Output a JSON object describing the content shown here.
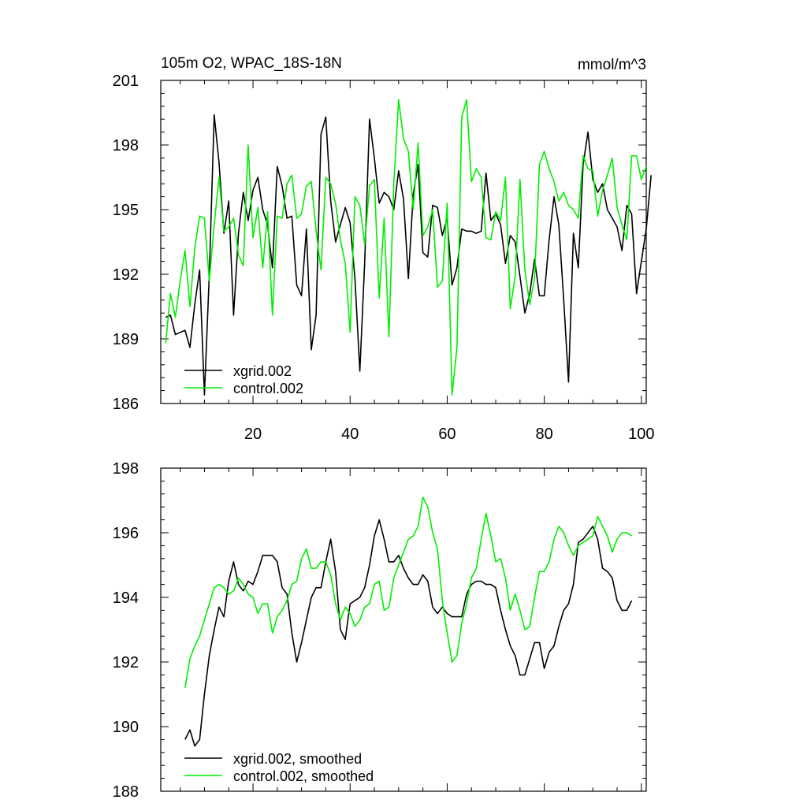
{
  "chart_data": [
    {
      "type": "line",
      "title": "105m O2, WPAC_18S-18N",
      "units": "mmol/m^3",
      "xlim": [
        1,
        101
      ],
      "ylim": [
        186,
        201
      ],
      "xticks": [
        20,
        40,
        60,
        80,
        100
      ],
      "yticks": [
        186,
        189,
        192,
        195,
        198,
        201
      ],
      "legend_position": "bottom-left",
      "series": [
        {
          "name": "xgrid.002",
          "color": "#000000",
          "x_start": 2,
          "values": [
            190.0,
            190.1,
            189.2,
            189.3,
            189.4,
            188.6,
            190.6,
            192.2,
            186.4,
            192.0,
            199.4,
            197.2,
            193.9,
            195.4,
            190.1,
            193.9,
            195.8,
            194.5,
            195.9,
            196.5,
            195.0,
            194.3,
            192.3,
            197.0,
            196.1,
            194.6,
            194.7,
            191.5,
            191.0,
            194.1,
            188.5,
            190.1,
            198.5,
            199.3,
            195.4,
            193.5,
            194.3,
            195.1,
            194.4,
            191.8,
            187.5,
            192.5,
            199.2,
            197.4,
            195.3,
            195.8,
            195.6,
            195.0,
            196.8,
            195.5,
            191.8,
            195.7,
            197.1,
            193.0,
            192.8,
            195.2,
            195.1,
            193.8,
            194.6,
            191.5,
            192.3,
            194.1,
            194.0,
            194.0,
            193.9,
            194.0,
            196.7,
            194.5,
            194.8,
            194.3,
            192.5,
            193.8,
            193.5,
            191.9,
            190.2,
            191.1,
            192.7,
            191.0,
            191.0,
            193.6,
            195.6,
            194.3,
            190.8,
            187.0,
            193.9,
            192.3,
            197.1,
            198.6,
            196.4,
            195.8,
            196.2,
            195.0,
            194.6,
            194.2,
            193.1,
            195.2,
            194.8,
            191.1,
            192.6,
            194.1,
            196.6
          ]
        },
        {
          "name": "control.002",
          "color": "#00ee00",
          "x_start": 2,
          "values": [
            188.8,
            191.1,
            190.0,
            191.7,
            193.1,
            190.5,
            193.2,
            194.7,
            194.6,
            191.7,
            194.3,
            196.5,
            194.0,
            194.2,
            194.6,
            192.9,
            192.4,
            198.0,
            193.7,
            195.1,
            192.3,
            194.9,
            190.1,
            194.7,
            194.6,
            196.2,
            196.6,
            194.6,
            194.8,
            196.1,
            196.3,
            194.0,
            192.2,
            196.5,
            196.2,
            195.3,
            193.6,
            192.5,
            189.3,
            195.6,
            195.2,
            193.4,
            196.1,
            196.4,
            190.9,
            194.6,
            189.1,
            196.2,
            200.1,
            198.3,
            197.7,
            195.0,
            198.1,
            193.8,
            194.2,
            195.0,
            191.4,
            191.7,
            195.3,
            186.4,
            188.6,
            199.3,
            200.1,
            196.3,
            196.9,
            196.5,
            193.7,
            193.6,
            194.9,
            194.5,
            196.5,
            190.4,
            191.9,
            196.4,
            192.2,
            190.6,
            191.8,
            197.1,
            197.7,
            196.9,
            196.3,
            195.4,
            195.8,
            195.2,
            195.0,
            194.6,
            197.5,
            196.9,
            196.8,
            194.7,
            195.9,
            196.6,
            197.4,
            195.1,
            194.3,
            193.6,
            197.5,
            197.5,
            196.4,
            197.0
          ]
        }
      ]
    },
    {
      "type": "line",
      "title": "",
      "xlim": [
        1,
        101
      ],
      "ylim": [
        188,
        198
      ],
      "yticks": [
        188,
        190,
        192,
        194,
        196,
        198
      ],
      "legend_position": "bottom-left",
      "series": [
        {
          "name": "xgrid.002, smoothed",
          "color": "#000000",
          "x_start": 6,
          "values": [
            189.6,
            189.9,
            189.4,
            189.6,
            191.0,
            192.2,
            193.0,
            193.7,
            193.4,
            194.5,
            195.1,
            194.4,
            194.2,
            194.5,
            194.4,
            194.8,
            195.3,
            195.3,
            195.3,
            195.1,
            194.3,
            194.1,
            192.9,
            192.0,
            192.6,
            193.3,
            194.0,
            194.3,
            194.3,
            195.1,
            195.8,
            194.8,
            193.0,
            192.7,
            193.8,
            193.9,
            194.0,
            194.3,
            195.0,
            195.9,
            196.4,
            195.8,
            195.1,
            195.1,
            195.3,
            194.9,
            194.6,
            194.4,
            194.4,
            194.7,
            194.5,
            193.7,
            193.5,
            193.7,
            193.5,
            193.4,
            193.4,
            193.4,
            194.1,
            194.4,
            194.5,
            194.5,
            194.4,
            194.4,
            194.3,
            193.6,
            193.0,
            192.5,
            192.2,
            191.6,
            191.6,
            192.1,
            192.6,
            192.6,
            191.8,
            192.3,
            192.5,
            193.1,
            193.6,
            193.8,
            194.4,
            195.7,
            195.8,
            196.0,
            196.2,
            195.8,
            194.9,
            194.8,
            194.6,
            193.9,
            193.6,
            193.6,
            193.9
          ]
        },
        {
          "name": "control.002, smoothed",
          "color": "#00ee00",
          "x_start": 6,
          "values": [
            191.2,
            192.1,
            192.5,
            192.8,
            193.3,
            193.8,
            194.3,
            194.4,
            194.3,
            194.1,
            194.2,
            194.6,
            194.4,
            194.1,
            194.0,
            193.5,
            193.8,
            193.8,
            192.9,
            193.4,
            193.6,
            193.9,
            194.4,
            194.5,
            195.2,
            195.5,
            194.9,
            194.9,
            195.1,
            195.1,
            194.7,
            193.8,
            193.3,
            193.7,
            193.5,
            193.1,
            193.3,
            193.7,
            193.8,
            194.4,
            194.5,
            193.6,
            193.7,
            194.6,
            195.0,
            195.4,
            195.8,
            195.9,
            196.2,
            197.1,
            196.8,
            196.0,
            195.5,
            193.9,
            192.9,
            192.0,
            192.2,
            193.2,
            193.8,
            194.6,
            194.9,
            195.8,
            196.6,
            195.9,
            195.1,
            195.2,
            194.6,
            193.6,
            194.1,
            193.6,
            193.0,
            193.1,
            194.0,
            194.8,
            194.8,
            195.1,
            195.8,
            196.2,
            196.0,
            195.6,
            195.3,
            195.6,
            195.7,
            195.8,
            195.9,
            196.5,
            196.2,
            195.9,
            195.4,
            195.8,
            196.0,
            196.0,
            195.9
          ]
        }
      ]
    }
  ]
}
